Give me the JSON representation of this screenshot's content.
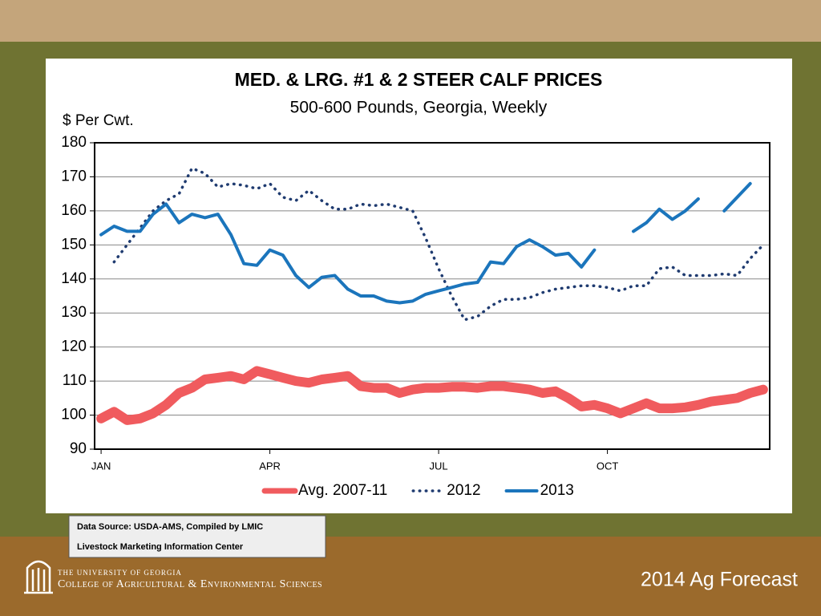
{
  "chart_data": {
    "type": "line",
    "title": "MED. & LRG. #1 & 2 STEER CALF PRICES",
    "subtitle": "500-600 Pounds, Georgia, Weekly",
    "y_label": "$ Per Cwt.",
    "x": [
      1,
      2,
      3,
      4,
      5,
      6,
      7,
      8,
      9,
      10,
      11,
      12,
      13,
      14,
      15,
      16,
      17,
      18,
      19,
      20,
      21,
      22,
      23,
      24,
      25,
      26,
      27,
      28,
      29,
      30,
      31,
      32,
      33,
      34,
      35,
      36,
      37,
      38,
      39,
      40,
      41,
      42,
      43,
      44,
      45,
      46,
      47,
      48,
      49,
      50,
      51,
      52
    ],
    "xlim": [
      0.5,
      52.5
    ],
    "xticks": [
      {
        "value": 1,
        "label": "JAN"
      },
      {
        "value": 14,
        "label": "APR"
      },
      {
        "value": 27,
        "label": "JUL"
      },
      {
        "value": 40,
        "label": "OCT"
      }
    ],
    "ylim": [
      90,
      180
    ],
    "yticks": [
      90,
      100,
      110,
      120,
      130,
      140,
      150,
      160,
      170,
      180
    ],
    "grid": true,
    "legend": "bottom",
    "series": [
      {
        "name": "Avg. 2007-11",
        "color": "#f05b5e",
        "style": "thick",
        "values": [
          99,
          101,
          98.5,
          99,
          100.5,
          103,
          106.5,
          108,
          110.5,
          111,
          111.5,
          110.5,
          113,
          112,
          111,
          110,
          109.5,
          110.5,
          111,
          111.5,
          108.5,
          108,
          108,
          106.5,
          107.5,
          108,
          108,
          108.3,
          108.3,
          108,
          108.5,
          108.5,
          108,
          107.5,
          106.5,
          107,
          105,
          102.5,
          103,
          102,
          100.5,
          102,
          103.5,
          102,
          102,
          102.3,
          103,
          104,
          104.5,
          105,
          106.5,
          107.5
        ]
      },
      {
        "name": "2012",
        "color": "#1f3b70",
        "style": "dotted",
        "values": [
          null,
          145,
          150,
          155,
          160,
          163,
          165,
          172.5,
          171,
          167,
          168,
          167.5,
          166.5,
          168,
          164,
          163,
          166,
          163,
          160.5,
          160.5,
          162,
          161.5,
          162,
          161,
          160,
          152,
          143,
          135,
          128,
          129,
          132,
          134,
          134,
          134.5,
          136,
          137,
          137.5,
          138,
          138,
          137.5,
          136.5,
          138,
          138,
          143,
          143.5,
          141,
          141,
          141,
          141.5,
          141,
          146,
          150
        ]
      },
      {
        "name": "2013",
        "color": "#1b75bc",
        "style": "solid",
        "values": [
          153,
          155.5,
          154,
          154,
          159,
          162,
          156.5,
          159,
          158,
          159,
          153,
          144.5,
          144,
          148.5,
          147,
          141,
          137.5,
          140.5,
          141,
          137,
          135,
          135,
          133.5,
          133,
          133.5,
          135.5,
          136.5,
          137.5,
          138.5,
          139,
          145,
          144.5,
          149.5,
          151.5,
          149.5,
          147,
          147.5,
          143.5,
          148.5,
          null,
          null,
          154,
          156.5,
          160.5,
          157.5,
          160,
          163.5,
          null,
          160,
          164,
          168,
          null
        ]
      }
    ]
  },
  "source": {
    "line1": "Data Source:  USDA-AMS, Compiled by LMIC",
    "line2": "Livestock Marketing Information Center"
  },
  "footer": {
    "university": "The University of Georgia",
    "college": "College of Agricultural & Environmental Sciences",
    "tagline": "2014 Ag Forecast"
  }
}
